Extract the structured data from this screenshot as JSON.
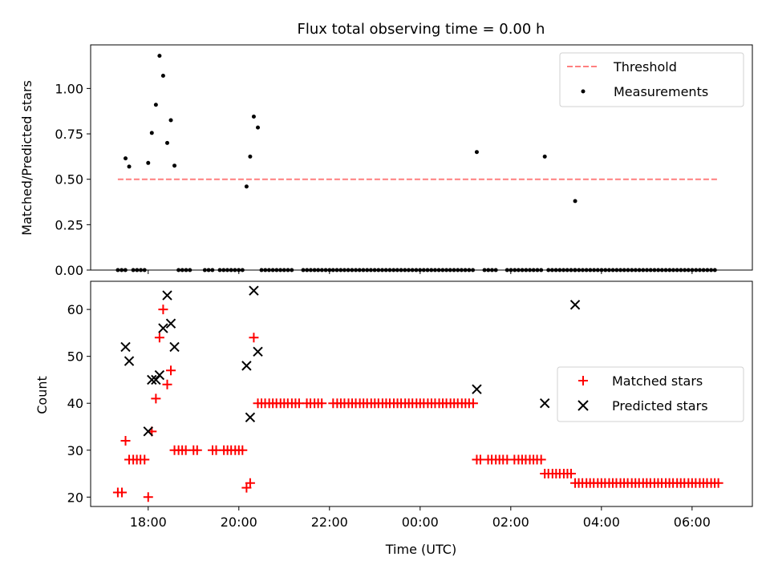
{
  "title": "Flux total observing time = 0.00 h",
  "chart_data": [
    {
      "type": "scatter",
      "panel": "top",
      "title": "Flux total observing time = 0.00 h",
      "xlabel": "",
      "ylabel": "Matched/Predicted stars",
      "xlim_hours": [
        16.73,
        31.33
      ],
      "ylim": [
        0,
        1.24
      ],
      "yticks": [
        0.0,
        0.25,
        0.5,
        0.75,
        1.0
      ],
      "ytick_labels": [
        "0.00",
        "0.25",
        "0.50",
        "0.75",
        "1.00"
      ],
      "xticks_hours": [
        18,
        20,
        22,
        24,
        26,
        28,
        30
      ],
      "legend_position": "top-right",
      "legend": [
        "Threshold",
        "Measurements"
      ],
      "threshold": {
        "name": "Threshold",
        "y": 0.5,
        "x_range_hours": [
          17.33,
          30.58
        ],
        "color": "#ff7f7f"
      },
      "series": [
        {
          "name": "Measurements",
          "color": "#000000",
          "x_hours": [
            17.5,
            17.58,
            18.0,
            18.08,
            18.17,
            18.25,
            18.33,
            18.42,
            18.5,
            18.58,
            20.17,
            20.25,
            20.33,
            20.42,
            25.25,
            26.75,
            27.42
          ],
          "y": [
            0.615,
            0.57,
            0.59,
            0.755,
            0.91,
            1.18,
            1.07,
            0.7,
            0.825,
            0.575,
            0.46,
            0.625,
            0.845,
            0.785,
            0.65,
            0.625,
            0.38
          ]
        }
      ],
      "zero_segments_hours": [
        [
          17.33,
          17.5
        ],
        [
          17.67,
          17.92
        ],
        [
          18.67,
          19.0
        ],
        [
          19.25,
          19.42
        ],
        [
          19.58,
          20.08
        ],
        [
          20.5,
          21.17
        ],
        [
          21.42,
          21.67
        ],
        [
          21.75,
          22.0
        ],
        [
          22.08,
          25.17
        ],
        [
          25.42,
          25.75
        ],
        [
          25.92,
          26.67
        ],
        [
          26.83,
          27.42
        ],
        [
          27.42,
          30.58
        ]
      ]
    },
    {
      "type": "scatter",
      "panel": "bottom",
      "xlabel": "Time (UTC)",
      "ylabel": "Count",
      "xlim_hours": [
        16.73,
        31.33
      ],
      "ylim": [
        18,
        66
      ],
      "yticks": [
        20,
        30,
        40,
        50,
        60
      ],
      "ytick_labels": [
        "20",
        "30",
        "40",
        "50",
        "60"
      ],
      "xticks_hours": [
        18,
        20,
        22,
        24,
        26,
        28,
        30
      ],
      "xtick_labels": [
        "18:00",
        "20:00",
        "22:00",
        "00:00",
        "02:00",
        "04:00",
        "06:00"
      ],
      "legend_position": "center-right",
      "legend": [
        "Matched stars",
        "Predicted stars"
      ],
      "series": [
        {
          "name": "Matched stars",
          "color": "#ff0000",
          "marker": "plus",
          "points": [
            [
              17.33,
              21
            ],
            [
              17.42,
              21
            ],
            [
              17.5,
              32
            ],
            [
              17.58,
              28
            ],
            [
              17.67,
              28
            ],
            [
              17.75,
              28
            ],
            [
              17.83,
              28
            ],
            [
              17.92,
              28
            ],
            [
              18.0,
              20
            ],
            [
              18.08,
              34
            ],
            [
              18.17,
              41
            ],
            [
              18.25,
              54
            ],
            [
              18.33,
              60
            ],
            [
              18.42,
              44
            ],
            [
              18.5,
              47
            ],
            [
              18.58,
              30
            ],
            [
              18.67,
              30
            ],
            [
              18.75,
              30
            ],
            [
              18.83,
              30
            ],
            [
              19.0,
              30
            ],
            [
              19.08,
              30
            ],
            [
              19.42,
              30
            ],
            [
              19.5,
              30
            ],
            [
              19.67,
              30
            ],
            [
              19.75,
              30
            ],
            [
              19.83,
              30
            ],
            [
              19.92,
              30
            ],
            [
              20.0,
              30
            ],
            [
              20.08,
              30
            ],
            [
              20.17,
              22
            ],
            [
              20.25,
              23
            ],
            [
              20.33,
              54
            ],
            [
              20.42,
              40
            ],
            [
              20.5,
              40
            ],
            [
              20.58,
              40
            ],
            [
              20.67,
              40
            ],
            [
              20.75,
              40
            ],
            [
              20.83,
              40
            ],
            [
              20.92,
              40
            ],
            [
              21.0,
              40
            ],
            [
              21.08,
              40
            ],
            [
              21.17,
              40
            ],
            [
              21.25,
              40
            ],
            [
              21.33,
              40
            ],
            [
              21.5,
              40
            ],
            [
              21.58,
              40
            ],
            [
              21.67,
              40
            ],
            [
              21.75,
              40
            ],
            [
              21.83,
              40
            ],
            [
              22.08,
              40
            ],
            [
              22.17,
              40
            ],
            [
              22.25,
              40
            ],
            [
              22.33,
              40
            ],
            [
              22.42,
              40
            ],
            [
              22.5,
              40
            ],
            [
              22.58,
              40
            ],
            [
              22.67,
              40
            ],
            [
              22.75,
              40
            ],
            [
              22.83,
              40
            ],
            [
              22.92,
              40
            ],
            [
              23.0,
              40
            ],
            [
              23.08,
              40
            ],
            [
              23.17,
              40
            ],
            [
              23.25,
              40
            ],
            [
              23.33,
              40
            ],
            [
              23.42,
              40
            ],
            [
              23.5,
              40
            ],
            [
              23.58,
              40
            ],
            [
              23.67,
              40
            ],
            [
              23.75,
              40
            ],
            [
              23.83,
              40
            ],
            [
              23.92,
              40
            ],
            [
              24.0,
              40
            ],
            [
              24.08,
              40
            ],
            [
              24.17,
              40
            ],
            [
              24.25,
              40
            ],
            [
              24.33,
              40
            ],
            [
              24.42,
              40
            ],
            [
              24.5,
              40
            ],
            [
              24.58,
              40
            ],
            [
              24.67,
              40
            ],
            [
              24.75,
              40
            ],
            [
              24.83,
              40
            ],
            [
              24.92,
              40
            ],
            [
              25.0,
              40
            ],
            [
              25.08,
              40
            ],
            [
              25.17,
              40
            ],
            [
              25.25,
              28
            ],
            [
              25.33,
              28
            ],
            [
              25.5,
              28
            ],
            [
              25.58,
              28
            ],
            [
              25.67,
              28
            ],
            [
              25.75,
              28
            ],
            [
              25.83,
              28
            ],
            [
              25.92,
              28
            ],
            [
              26.08,
              28
            ],
            [
              26.17,
              28
            ],
            [
              26.25,
              28
            ],
            [
              26.33,
              28
            ],
            [
              26.42,
              28
            ],
            [
              26.5,
              28
            ],
            [
              26.58,
              28
            ],
            [
              26.67,
              28
            ],
            [
              26.75,
              25
            ],
            [
              26.83,
              25
            ],
            [
              26.92,
              25
            ],
            [
              27.0,
              25
            ],
            [
              27.08,
              25
            ],
            [
              27.17,
              25
            ],
            [
              27.25,
              25
            ],
            [
              27.33,
              25
            ],
            [
              27.42,
              23
            ],
            [
              27.5,
              23
            ],
            [
              27.58,
              23
            ],
            [
              27.67,
              23
            ],
            [
              27.75,
              23
            ],
            [
              27.83,
              23
            ],
            [
              27.92,
              23
            ],
            [
              28.0,
              23
            ],
            [
              28.08,
              23
            ],
            [
              28.17,
              23
            ],
            [
              28.25,
              23
            ],
            [
              28.33,
              23
            ],
            [
              28.42,
              23
            ],
            [
              28.5,
              23
            ],
            [
              28.58,
              23
            ],
            [
              28.67,
              23
            ],
            [
              28.75,
              23
            ],
            [
              28.83,
              23
            ],
            [
              28.92,
              23
            ],
            [
              29.0,
              23
            ],
            [
              29.08,
              23
            ],
            [
              29.17,
              23
            ],
            [
              29.25,
              23
            ],
            [
              29.33,
              23
            ],
            [
              29.42,
              23
            ],
            [
              29.5,
              23
            ],
            [
              29.58,
              23
            ],
            [
              29.67,
              23
            ],
            [
              29.75,
              23
            ],
            [
              29.83,
              23
            ],
            [
              29.92,
              23
            ],
            [
              30.0,
              23
            ],
            [
              30.08,
              23
            ],
            [
              30.17,
              23
            ],
            [
              30.25,
              23
            ],
            [
              30.33,
              23
            ],
            [
              30.42,
              23
            ],
            [
              30.5,
              23
            ],
            [
              30.58,
              23
            ]
          ]
        },
        {
          "name": "Predicted stars",
          "color": "#000000",
          "marker": "x",
          "points": [
            [
              17.5,
              52
            ],
            [
              17.58,
              49
            ],
            [
              18.0,
              34
            ],
            [
              18.08,
              45
            ],
            [
              18.17,
              45
            ],
            [
              18.25,
              46
            ],
            [
              18.33,
              56
            ],
            [
              18.42,
              63
            ],
            [
              18.5,
              57
            ],
            [
              18.58,
              52
            ],
            [
              20.17,
              48
            ],
            [
              20.25,
              37
            ],
            [
              20.33,
              64
            ],
            [
              20.42,
              51
            ],
            [
              25.25,
              43
            ],
            [
              26.75,
              40
            ],
            [
              27.42,
              61
            ]
          ]
        }
      ]
    }
  ]
}
